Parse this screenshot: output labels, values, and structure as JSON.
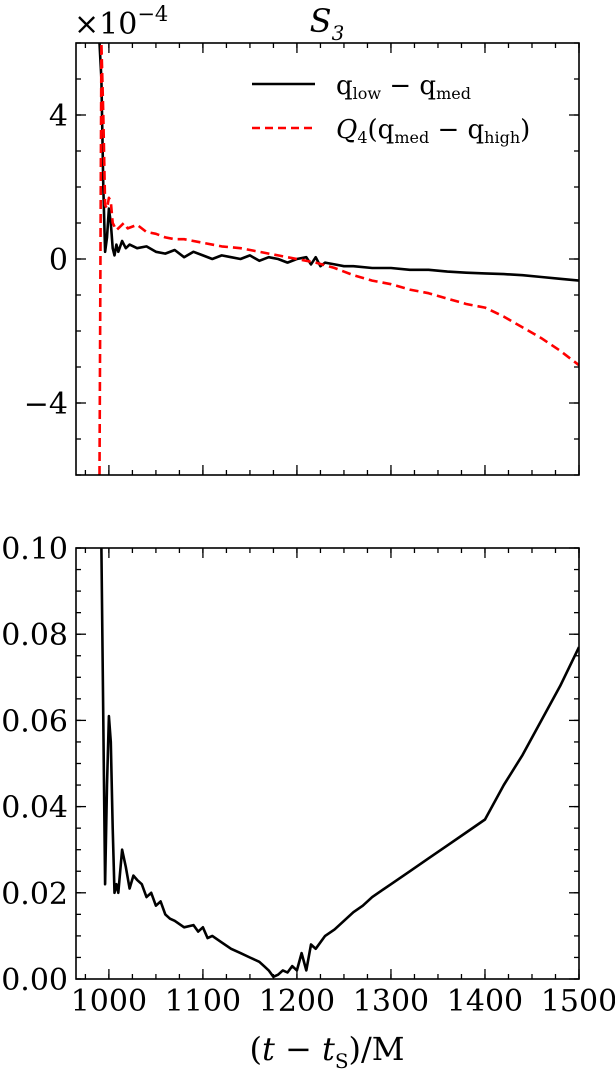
{
  "chart_data": [
    {
      "type": "line",
      "title": "S_3",
      "exponent_label": "×10^−4",
      "xlim": [
        965,
        1500
      ],
      "ylim": [
        -6,
        6
      ],
      "yticks": [
        -4,
        0,
        4
      ],
      "xticks": [
        1000,
        1100,
        1200,
        1300,
        1400,
        1500
      ],
      "show_xtick_labels": false,
      "legend": "top-right",
      "series": [
        {
          "name": "q_low − q_med",
          "color": "#000000",
          "style": "solid",
          "x": [
            990,
            992,
            994,
            996,
            998,
            1000,
            1002,
            1004,
            1006,
            1008,
            1010,
            1014,
            1018,
            1022,
            1030,
            1040,
            1050,
            1060,
            1070,
            1080,
            1090,
            1100,
            1110,
            1120,
            1130,
            1140,
            1150,
            1160,
            1170,
            1180,
            1190,
            1200,
            1210,
            1215,
            1220,
            1225,
            1230,
            1240,
            1250,
            1260,
            1280,
            1300,
            1320,
            1340,
            1360,
            1380,
            1400,
            1420,
            1440,
            1460,
            1480,
            1500
          ],
          "y": [
            6.0,
            5.0,
            2.0,
            0.2,
            0.6,
            1.4,
            1.0,
            0.3,
            0.1,
            0.4,
            0.2,
            0.5,
            0.3,
            0.4,
            0.3,
            0.35,
            0.2,
            0.15,
            0.25,
            0.05,
            0.2,
            0.1,
            0.0,
            0.1,
            0.05,
            0.0,
            0.1,
            -0.05,
            0.05,
            0.0,
            -0.1,
            0.0,
            0.05,
            -0.15,
            0.05,
            -0.2,
            -0.1,
            -0.15,
            -0.2,
            -0.2,
            -0.25,
            -0.25,
            -0.3,
            -0.3,
            -0.35,
            -0.38,
            -0.4,
            -0.42,
            -0.45,
            -0.5,
            -0.55,
            -0.6
          ]
        },
        {
          "name": "Q_4(q_med − q_high)",
          "color": "#ff0000",
          "style": "dashed",
          "x": [
            990,
            992,
            994,
            996,
            998,
            1000,
            1002,
            1004,
            1008,
            1012,
            1016,
            1020,
            1030,
            1040,
            1050,
            1060,
            1070,
            1080,
            1100,
            1120,
            1140,
            1160,
            1180,
            1200,
            1220,
            1240,
            1260,
            1280,
            1300,
            1320,
            1340,
            1360,
            1380,
            1400,
            1420,
            1440,
            1460,
            1480,
            1500
          ],
          "y": [
            -6.0,
            6.0,
            4.0,
            1.5,
            1.4,
            1.7,
            1.6,
            1.0,
            0.8,
            0.9,
            1.0,
            0.85,
            0.95,
            0.75,
            0.7,
            0.6,
            0.55,
            0.55,
            0.45,
            0.35,
            0.3,
            0.2,
            0.1,
            0.0,
            -0.1,
            -0.25,
            -0.45,
            -0.6,
            -0.7,
            -0.85,
            -0.95,
            -1.1,
            -1.25,
            -1.35,
            -1.6,
            -1.9,
            -2.2,
            -2.55,
            -2.95
          ]
        }
      ]
    },
    {
      "type": "line",
      "xlabel": "(t − t_S)/M",
      "xlim": [
        965,
        1500
      ],
      "ylim": [
        0,
        0.1
      ],
      "yticks": [
        0.0,
        0.02,
        0.04,
        0.06,
        0.08,
        0.1
      ],
      "ytick_labels": [
        "0.00",
        "0.02",
        "0.04",
        "0.06",
        "0.08",
        "0.10"
      ],
      "xticks": [
        1000,
        1100,
        1200,
        1300,
        1400,
        1500
      ],
      "xtick_labels": [
        "1000",
        "1100",
        "1200",
        "1300",
        "1400",
        "1500"
      ],
      "series": [
        {
          "color": "#000000",
          "style": "solid",
          "x": [
            992,
            994,
            996,
            998,
            1000,
            1002,
            1004,
            1006,
            1008,
            1010,
            1014,
            1018,
            1022,
            1026,
            1030,
            1035,
            1040,
            1045,
            1050,
            1055,
            1060,
            1065,
            1070,
            1080,
            1090,
            1095,
            1100,
            1105,
            1110,
            1120,
            1130,
            1140,
            1150,
            1160,
            1165,
            1170,
            1175,
            1180,
            1185,
            1190,
            1195,
            1200,
            1205,
            1210,
            1215,
            1220,
            1230,
            1240,
            1250,
            1260,
            1270,
            1280,
            1290,
            1300,
            1320,
            1340,
            1360,
            1380,
            1400,
            1420,
            1440,
            1460,
            1480,
            1500
          ],
          "y": [
            0.1,
            0.06,
            0.022,
            0.045,
            0.061,
            0.055,
            0.035,
            0.02,
            0.022,
            0.02,
            0.03,
            0.026,
            0.021,
            0.024,
            0.023,
            0.022,
            0.019,
            0.02,
            0.017,
            0.018,
            0.015,
            0.014,
            0.0135,
            0.012,
            0.0125,
            0.011,
            0.012,
            0.0095,
            0.01,
            0.0085,
            0.007,
            0.006,
            0.005,
            0.004,
            0.003,
            0.002,
            0.0005,
            0.001,
            0.002,
            0.0015,
            0.003,
            0.002,
            0.006,
            0.002,
            0.008,
            0.007,
            0.01,
            0.0115,
            0.0135,
            0.0155,
            0.017,
            0.019,
            0.0205,
            0.022,
            0.025,
            0.028,
            0.031,
            0.034,
            0.037,
            0.045,
            0.052,
            0.06,
            0.068,
            0.077
          ]
        }
      ]
    }
  ]
}
